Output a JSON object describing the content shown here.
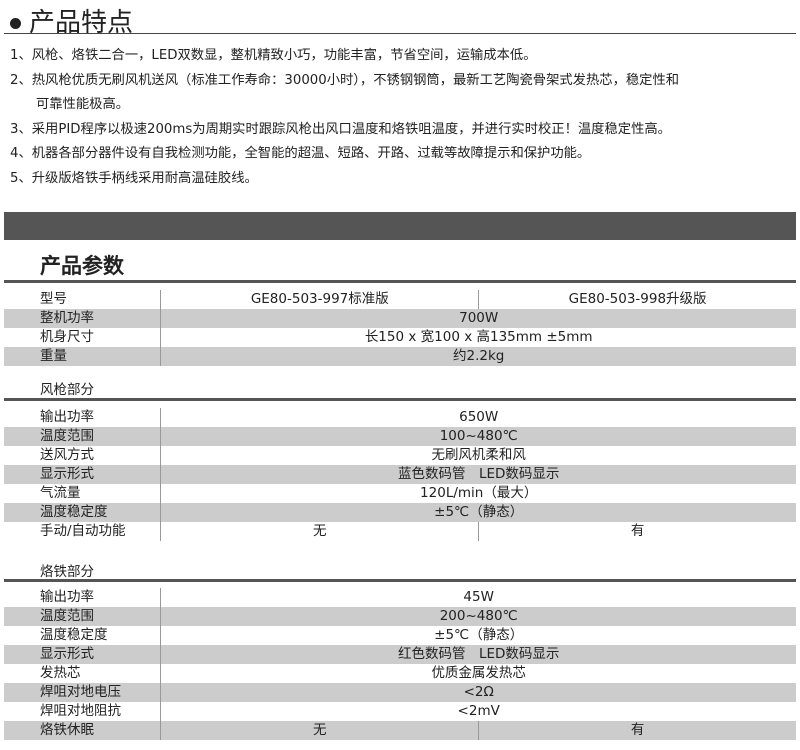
{
  "features": {
    "title": "产品特点",
    "items": [
      "1、风枪、烙铁二合一，LED双数显，整机精致小巧，功能丰富，节省空间，运输成本低。",
      "2、热风枪优质无刷风机送风（标准工作寿命：30000小时），不锈钢钢筒，最新工艺陶瓷骨架式发热芯，稳定性和",
      "可靠性能极高。",
      "3、采用PID程序以极速200ms为周期实时跟踪风枪出风口温度和烙铁咀温度，并进行实时校正！温度稳定性高。",
      "4、机器各部分器件设有自我检测功能，全智能的超温、短路、开路、过载等故障提示和保护功能。",
      "5、升级版烙铁手柄线采用耐高温硅胶线。"
    ]
  },
  "params": {
    "title": "产品参数",
    "general": [
      [
        "型号",
        "GE80-503-997标准版",
        "GE80-503-998升级版"
      ],
      [
        "整机功率",
        "700W"
      ],
      [
        "机身尺寸",
        "长150 x 宽100 x 高135mm ±5mm"
      ],
      [
        "重量",
        "约2.2kg"
      ]
    ],
    "gun_title": "风枪部分",
    "gun": [
      [
        "输出功率",
        "650W"
      ],
      [
        "温度范围",
        "100~480℃"
      ],
      [
        "送风方式",
        "无刷风机柔和风"
      ],
      [
        "显示形式",
        "蓝色数码管　LED数码显示"
      ],
      [
        "气流量",
        "120L/min（最大）"
      ],
      [
        "温度稳定度",
        "±5℃（静态）"
      ],
      [
        "手动/自动功能",
        "无",
        "有"
      ]
    ],
    "iron_title": "烙铁部分",
    "iron": [
      [
        "输出功率",
        "45W"
      ],
      [
        "温度范围",
        "200~480℃"
      ],
      [
        "温度稳定度",
        "±5℃（静态）"
      ],
      [
        "显示形式",
        "红色数码管　LED数码显示"
      ],
      [
        "发热芯",
        "优质金属发热芯"
      ],
      [
        "焊咀对地电压",
        "<2Ω"
      ],
      [
        "焊咀对地阻抗",
        "<2mV"
      ],
      [
        "烙铁休眠",
        "无",
        "有"
      ]
    ]
  }
}
